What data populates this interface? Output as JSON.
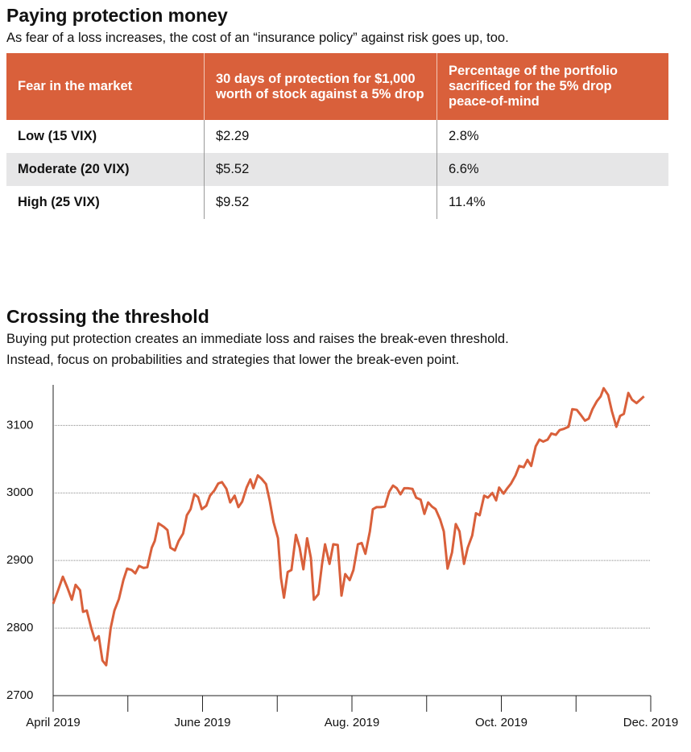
{
  "title": "Paying protection money",
  "subtitle": "As fear of a loss increases, the cost of an “insurance policy” against risk goes up, too.",
  "table": {
    "header": [
      "Fear in the market",
      "30 days of protection for $1,000 worth of stock against a 5% drop",
      "Percentage of the portfolio sacrificed for the 5% drop peace-of-mind"
    ],
    "rows": [
      [
        "Low (15 VIX)",
        "$2.29",
        "2.8%"
      ],
      [
        "Moderate (20 VIX)",
        "$5.52",
        "6.6%"
      ],
      [
        "High (25 VIX)",
        "$9.52",
        "11.4%"
      ]
    ]
  },
  "chart_data": {
    "type": "line",
    "title": "Crossing the threshold",
    "subtitle": [
      "Buying put protection creates an immediate loss and raises the break-even threshold.",
      "Instead, focus on probabilities and strategies that lower the break-even point."
    ],
    "color": "#d9603b",
    "grid": true,
    "xlim": [
      0,
      8
    ],
    "xticks": [
      {
        "value": 0,
        "label": "April 2019"
      },
      {
        "value": 1,
        "label": null
      },
      {
        "value": 2,
        "label": "June 2019"
      },
      {
        "value": 3,
        "label": null
      },
      {
        "value": 4,
        "label": "Aug. 2019"
      },
      {
        "value": 5,
        "label": null
      },
      {
        "value": 6,
        "label": "Oct. 2019"
      },
      {
        "value": 7,
        "label": null
      },
      {
        "value": 8,
        "label": "Dec. 2019"
      }
    ],
    "ylim": [
      2700,
      3160
    ],
    "yticks": [
      2700,
      2800,
      2900,
      3000,
      3100
    ],
    "x": [
      0,
      0.06,
      0.13,
      0.19,
      0.25,
      0.3,
      0.36,
      0.4,
      0.45,
      0.51,
      0.56,
      0.61,
      0.66,
      0.71,
      0.77,
      0.82,
      0.88,
      0.94,
      0.99,
      1.05,
      1.1,
      1.15,
      1.21,
      1.26,
      1.32,
      1.36,
      1.41,
      1.48,
      1.53,
      1.57,
      1.63,
      1.68,
      1.74,
      1.79,
      1.84,
      1.89,
      1.94,
      1.99,
      2.05,
      2.1,
      2.16,
      2.21,
      2.26,
      2.32,
      2.37,
      2.43,
      2.48,
      2.53,
      2.59,
      2.64,
      2.68,
      2.74,
      2.79,
      2.85,
      2.9,
      2.95,
      3.01,
      3.05,
      3.09,
      3.14,
      3.19,
      3.25,
      3.3,
      3.35,
      3.4,
      3.45,
      3.49,
      3.55,
      3.6,
      3.64,
      3.7,
      3.75,
      3.81,
      3.86,
      3.91,
      3.97,
      4.02,
      4.08,
      4.13,
      4.18,
      4.24,
      4.28,
      4.33,
      4.39,
      4.44,
      4.5,
      4.55,
      4.6,
      4.65,
      4.7,
      4.75,
      4.81,
      4.86,
      4.92,
      4.97,
      5.02,
      5.07,
      5.12,
      5.18,
      5.23,
      5.28,
      5.34,
      5.39,
      5.44,
      5.5,
      5.55,
      5.61,
      5.66,
      5.71,
      5.77,
      5.82,
      5.88,
      5.93,
      5.97,
      6.03,
      6.08,
      6.13,
      6.19,
      6.24,
      6.3,
      6.35,
      6.4,
      6.46,
      6.51,
      6.56,
      6.62,
      6.67,
      6.73,
      6.78,
      6.84,
      6.9,
      6.95,
      7.01,
      7.06,
      7.12,
      7.17,
      7.22,
      7.28,
      7.33,
      7.37,
      7.43,
      7.48,
      7.54,
      7.59,
      7.64,
      7.7,
      7.75,
      7.81,
      7.86,
      7.91
    ],
    "values": [
      2836,
      2854,
      2876,
      2860,
      2842,
      2864,
      2856,
      2824,
      2826,
      2800,
      2782,
      2788,
      2752,
      2745,
      2800,
      2826,
      2843,
      2871,
      2888,
      2886,
      2881,
      2892,
      2889,
      2890,
      2919,
      2929,
      2955,
      2950,
      2945,
      2919,
      2915,
      2929,
      2940,
      2967,
      2976,
      2998,
      2994,
      2976,
      2981,
      2996,
      3004,
      3014,
      3016,
      3006,
      2986,
      2996,
      2979,
      2987,
      3008,
      3020,
      3007,
      3026,
      3021,
      3013,
      2988,
      2957,
      2933,
      2874,
      2845,
      2883,
      2886,
      2938,
      2919,
      2887,
      2933,
      2904,
      2842,
      2850,
      2895,
      2924,
      2895,
      2924,
      2923,
      2848,
      2880,
      2871,
      2886,
      2924,
      2926,
      2910,
      2943,
      2976,
      2979,
      2979,
      2980,
      3002,
      3011,
      3007,
      2998,
      3007,
      3007,
      3006,
      2993,
      2990,
      2969,
      2986,
      2980,
      2976,
      2961,
      2943,
      2888,
      2912,
      2954,
      2943,
      2895,
      2919,
      2937,
      2970,
      2967,
      2996,
      2993,
      3000,
      2989,
      3008,
      2999,
      3007,
      3014,
      3026,
      3040,
      3038,
      3049,
      3040,
      3069,
      3079,
      3076,
      3079,
      3088,
      3086,
      3093,
      3095,
      3098,
      3124,
      3123,
      3116,
      3107,
      3110,
      3124,
      3136,
      3143,
      3155,
      3145,
      3121,
      3098,
      3114,
      3117,
      3148,
      3138,
      3133,
      3138,
      3143
    ]
  }
}
